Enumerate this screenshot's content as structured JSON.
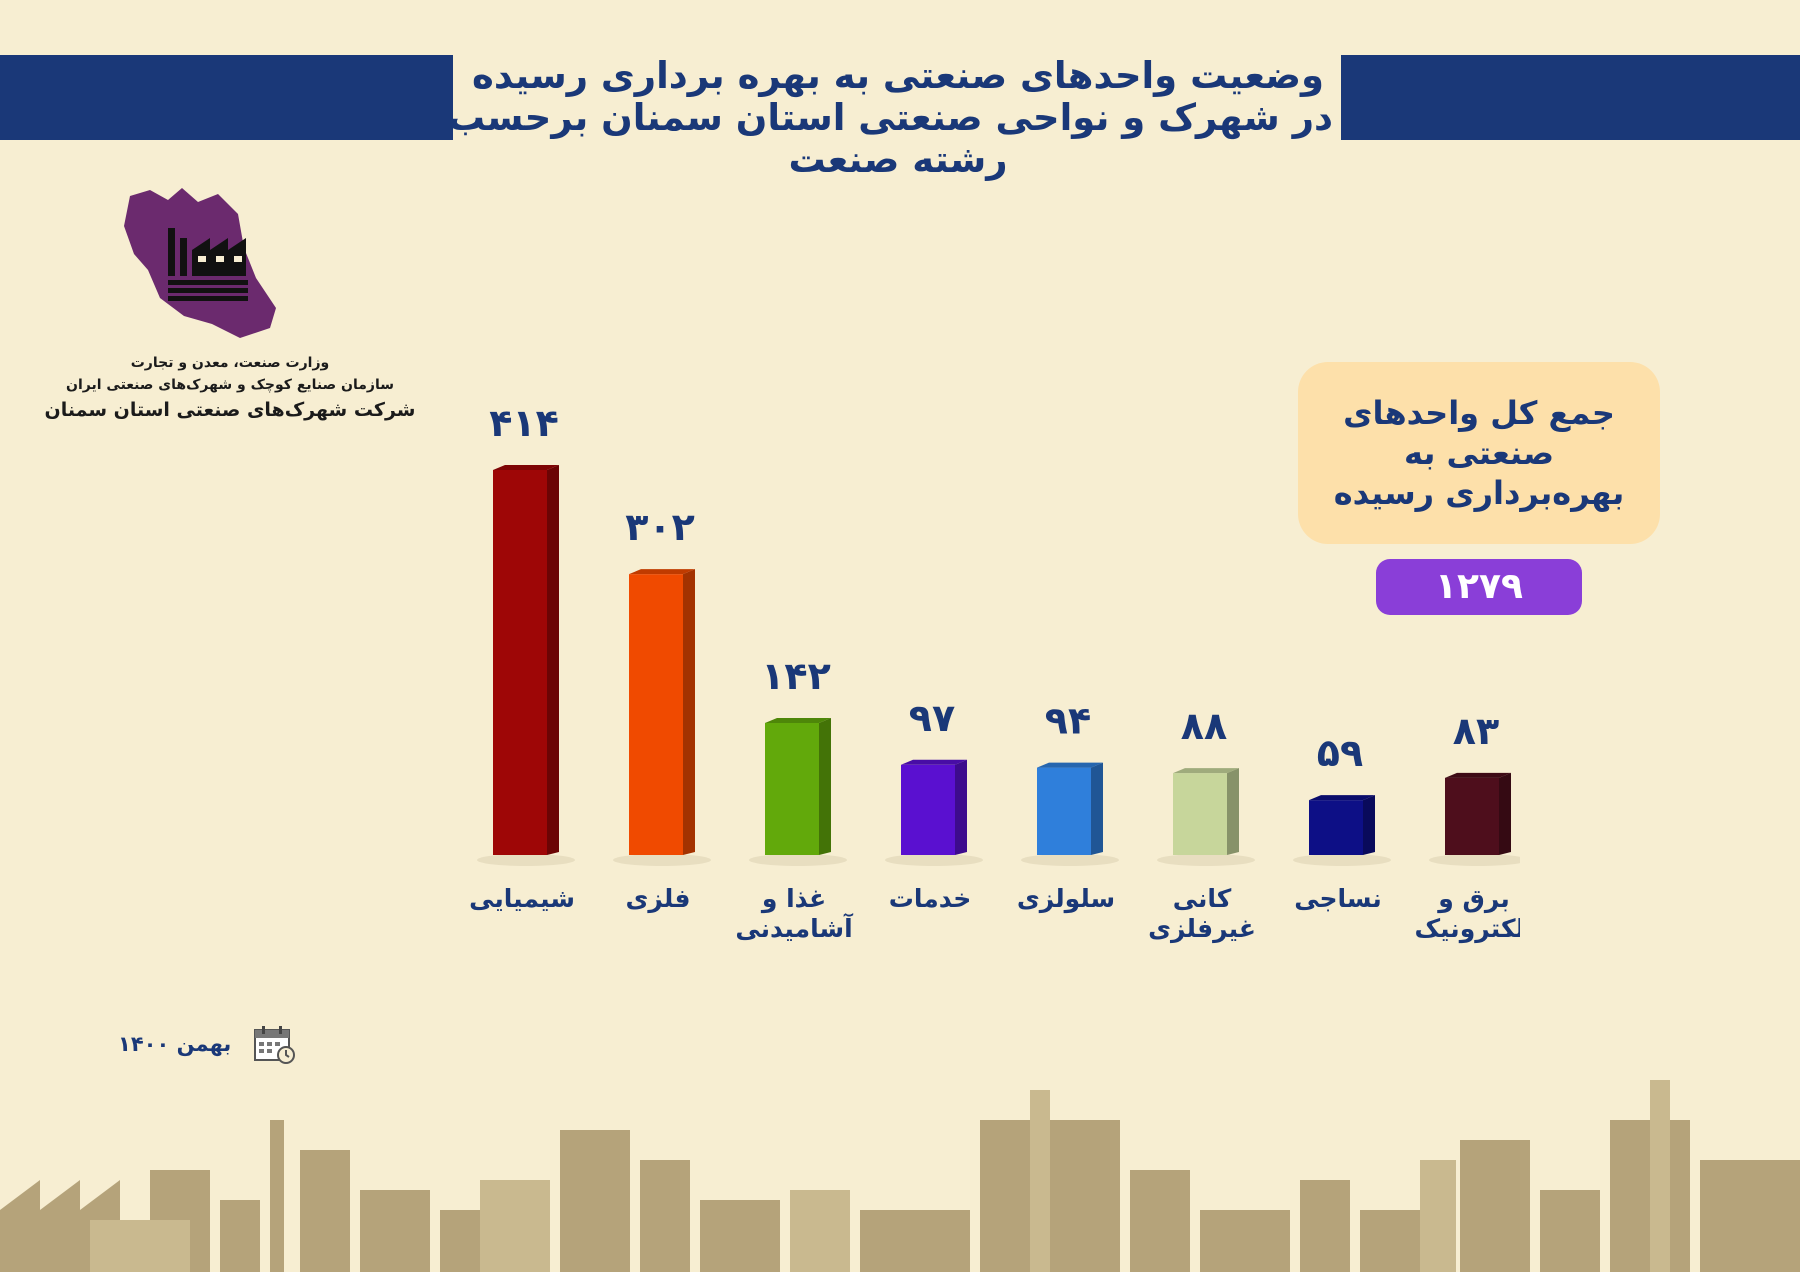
{
  "header": {
    "title_lines": [
      "وضعیت واحدهای صنعتی به بهره برداری رسیده",
      "در شهرک و نواحی صنعتی استان سمنان برحسب",
      "رشته صنعت"
    ]
  },
  "org": {
    "line1": "وزارت صنعت، معدن و تجارت",
    "line2": "سازمان صنایع کوچک و شهرک‌های صنعتی ایران",
    "line3": "شرکت شهرک‌های صنعتی استان سمنان"
  },
  "summary": {
    "label": "جمع کل واحدهای صنعتی به بهره‌برداری رسیده",
    "value": "۱۲۷۹"
  },
  "date_label": "بهمن ۱۴۰۰",
  "icons": {
    "calendar": "calendar-icon",
    "logo": "iran-map-factory-logo"
  },
  "chart_data": {
    "type": "bar",
    "categories": [
      "شیمیایی",
      "فلزی",
      "غذا و آشامیدنی",
      "خدمات",
      "سلولزی",
      "کانی غیرفلزی",
      "نساجی",
      "برق و الکترونیک"
    ],
    "values": [
      414,
      302,
      142,
      97,
      94,
      88,
      59,
      83
    ],
    "value_labels": [
      "۴۱۴",
      "۳۰۲",
      "۱۴۲",
      "۹۷",
      "۹۴",
      "۸۸",
      "۵۹",
      "۸۳"
    ],
    "category_lines": [
      [
        "شیمیایی"
      ],
      [
        "فلزی"
      ],
      [
        "غذا و",
        "آشامیدنی"
      ],
      [
        "خدمات"
      ],
      [
        "سلولزی"
      ],
      [
        "کانی",
        "غیرفلزی"
      ],
      [
        "نساجی"
      ],
      [
        "برق و",
        "الکترونیک"
      ]
    ],
    "colors": [
      "#9e0606",
      "#f04a00",
      "#62a90b",
      "#5a10d0",
      "#2f7fdb",
      "#c7d69b",
      "#0d0f86",
      "#4e0e1c"
    ],
    "ylim": [
      0,
      414
    ],
    "grid": false,
    "legend": "none"
  }
}
